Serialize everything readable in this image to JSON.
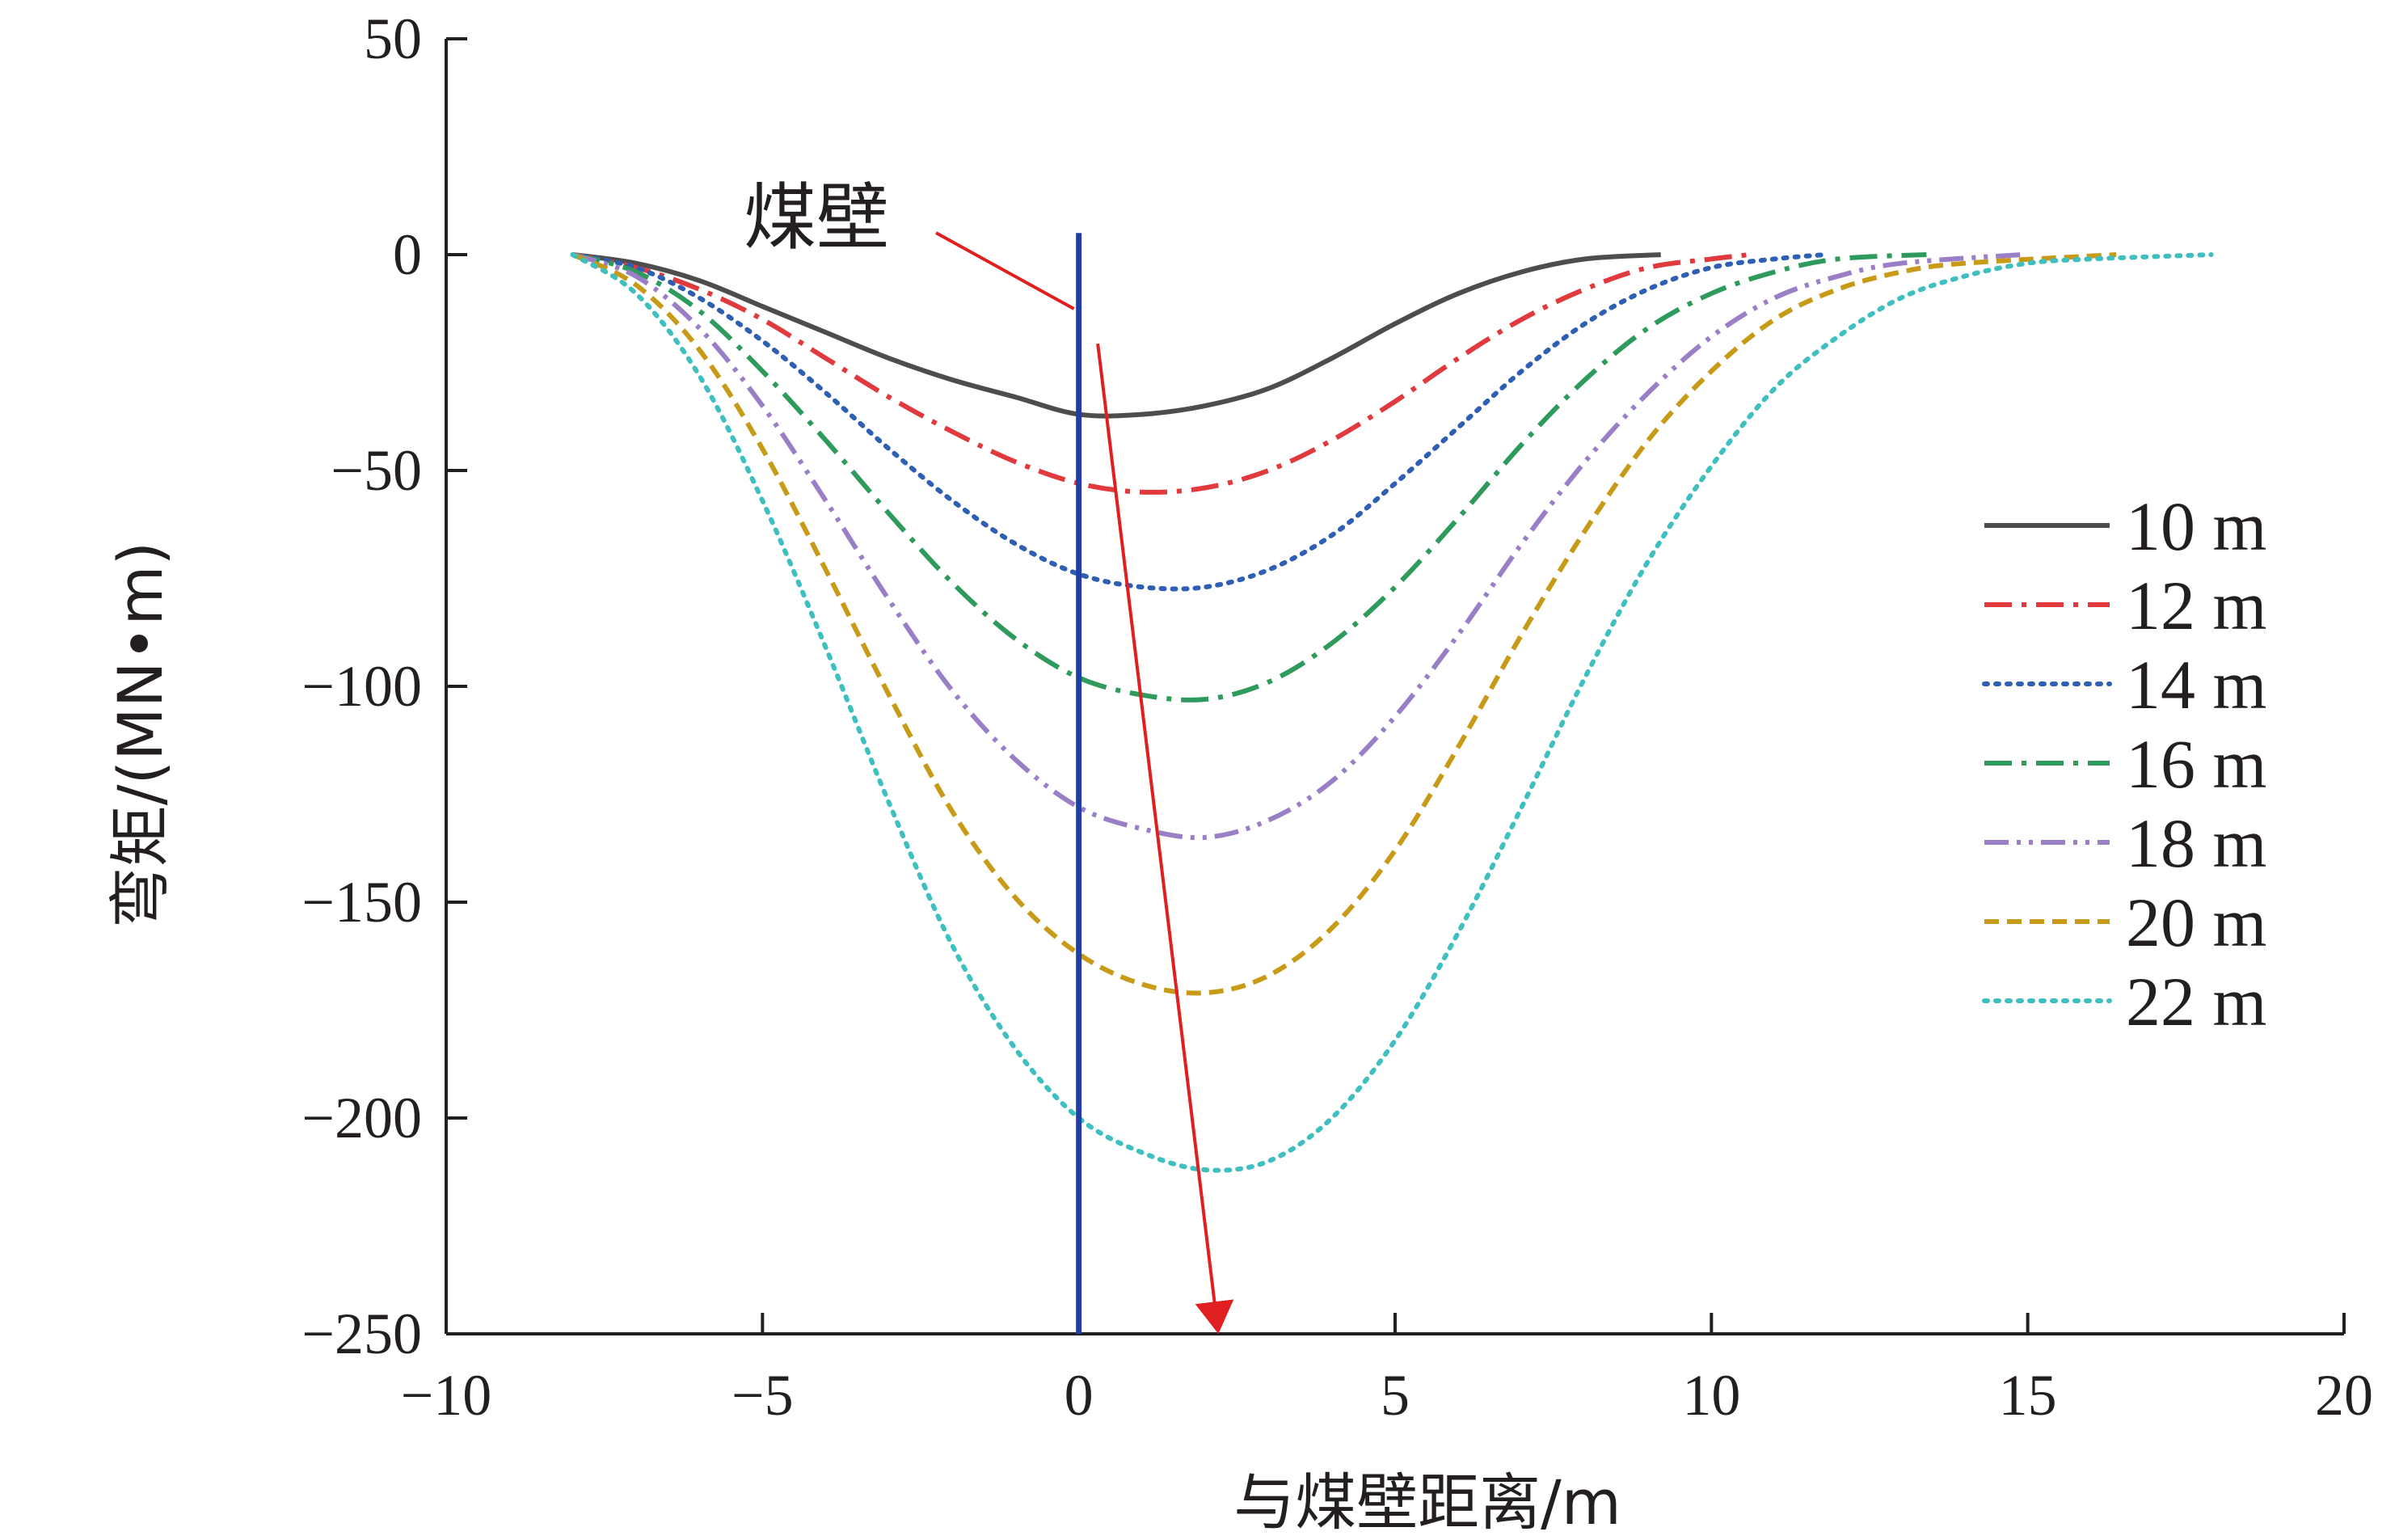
{
  "chart_data": {
    "type": "line",
    "title": "",
    "xlabel": "与煤壁距离/m",
    "ylabel": "弯矩/(MN•m)",
    "xlim": [
      -10,
      20
    ],
    "ylim": [
      -250,
      50
    ],
    "xticks": [
      -10,
      -5,
      0,
      5,
      10,
      15,
      20
    ],
    "yticks": [
      50,
      0,
      -50,
      -100,
      -150,
      -200,
      -250
    ],
    "grid": false,
    "legend": "right",
    "series": [
      {
        "name": "10 m",
        "color": "#4d4d4d",
        "dash": "solid",
        "x_start": -8,
        "x_end": 9.2,
        "min_x": 0,
        "min_y": -37,
        "points": [
          [
            -8,
            0
          ],
          [
            -7,
            -2
          ],
          [
            -6,
            -6
          ],
          [
            -5,
            -12
          ],
          [
            -4,
            -18
          ],
          [
            -3,
            -24
          ],
          [
            -2,
            -29
          ],
          [
            -1,
            -33
          ],
          [
            0,
            -37
          ],
          [
            1,
            -37
          ],
          [
            2,
            -35
          ],
          [
            3,
            -31
          ],
          [
            4,
            -24
          ],
          [
            5,
            -16
          ],
          [
            6,
            -9
          ],
          [
            7,
            -4
          ],
          [
            8,
            -1
          ],
          [
            9.2,
            0
          ]
        ]
      },
      {
        "name": "12 m",
        "color": "#e03a3e",
        "dash": "dashdot",
        "x_start": -8,
        "x_end": 10.6,
        "min_x": 0.5,
        "min_y": -55,
        "points": [
          [
            -8,
            0
          ],
          [
            -7,
            -3
          ],
          [
            -6,
            -8
          ],
          [
            -5,
            -15
          ],
          [
            -4,
            -24
          ],
          [
            -3,
            -33
          ],
          [
            -2,
            -41
          ],
          [
            -1,
            -48
          ],
          [
            0,
            -53
          ],
          [
            1,
            -55
          ],
          [
            2,
            -54
          ],
          [
            3,
            -50
          ],
          [
            4,
            -43
          ],
          [
            5,
            -34
          ],
          [
            6,
            -24
          ],
          [
            7,
            -15
          ],
          [
            8,
            -8
          ],
          [
            9,
            -3
          ],
          [
            10,
            -1
          ],
          [
            10.6,
            0
          ]
        ]
      },
      {
        "name": "14 m",
        "color": "#2f5fb3",
        "dash": "dot",
        "x_start": -8,
        "x_end": 11.8,
        "min_x": 1,
        "min_y": -77,
        "points": [
          [
            -8,
            0
          ],
          [
            -7,
            -3
          ],
          [
            -6,
            -10
          ],
          [
            -5,
            -20
          ],
          [
            -4,
            -32
          ],
          [
            -3,
            -45
          ],
          [
            -2,
            -57
          ],
          [
            -1,
            -67
          ],
          [
            0,
            -74
          ],
          [
            1,
            -77
          ],
          [
            2,
            -77
          ],
          [
            3,
            -73
          ],
          [
            4,
            -65
          ],
          [
            5,
            -53
          ],
          [
            6,
            -40
          ],
          [
            7,
            -27
          ],
          [
            8,
            -16
          ],
          [
            9,
            -8
          ],
          [
            10,
            -3
          ],
          [
            11,
            -1
          ],
          [
            11.8,
            0
          ]
        ]
      },
      {
        "name": "16 m",
        "color": "#2e9b5c",
        "dash": "dashdot",
        "x_start": -8,
        "x_end": 13.4,
        "min_x": 1.5,
        "min_y": -103,
        "points": [
          [
            -8,
            0
          ],
          [
            -7,
            -4
          ],
          [
            -6,
            -13
          ],
          [
            -5,
            -27
          ],
          [
            -4,
            -43
          ],
          [
            -3,
            -60
          ],
          [
            -2,
            -76
          ],
          [
            -1,
            -89
          ],
          [
            0,
            -98
          ],
          [
            1,
            -102
          ],
          [
            2,
            -103
          ],
          [
            3,
            -99
          ],
          [
            4,
            -90
          ],
          [
            5,
            -77
          ],
          [
            6,
            -61
          ],
          [
            7,
            -44
          ],
          [
            8,
            -29
          ],
          [
            9,
            -17
          ],
          [
            10,
            -9
          ],
          [
            11,
            -4
          ],
          [
            12,
            -1
          ],
          [
            13.4,
            0
          ]
        ]
      },
      {
        "name": "18 m",
        "color": "#9b7fc6",
        "dash": "dashdotdot",
        "x_start": -8,
        "x_end": 14.9,
        "min_x": 2,
        "min_y": -135,
        "points": [
          [
            -8,
            0
          ],
          [
            -7,
            -5
          ],
          [
            -6,
            -17
          ],
          [
            -5,
            -35
          ],
          [
            -4,
            -57
          ],
          [
            -3,
            -80
          ],
          [
            -2,
            -101
          ],
          [
            -1,
            -117
          ],
          [
            0,
            -128
          ],
          [
            1,
            -133
          ],
          [
            2,
            -135
          ],
          [
            3,
            -131
          ],
          [
            4,
            -122
          ],
          [
            5,
            -107
          ],
          [
            6,
            -88
          ],
          [
            7,
            -67
          ],
          [
            8,
            -48
          ],
          [
            9,
            -32
          ],
          [
            10,
            -19
          ],
          [
            11,
            -10
          ],
          [
            12,
            -5
          ],
          [
            13,
            -2
          ],
          [
            14.9,
            0
          ]
        ]
      },
      {
        "name": "20 m",
        "color": "#c79a18",
        "dash": "dash",
        "x_start": -8,
        "x_end": 16.4,
        "min_x": 2,
        "min_y": -171,
        "points": [
          [
            -8,
            0
          ],
          [
            -7,
            -7
          ],
          [
            -6,
            -22
          ],
          [
            -5,
            -45
          ],
          [
            -4,
            -73
          ],
          [
            -3,
            -102
          ],
          [
            -2,
            -129
          ],
          [
            -1,
            -149
          ],
          [
            0,
            -162
          ],
          [
            1,
            -169
          ],
          [
            2,
            -171
          ],
          [
            3,
            -167
          ],
          [
            4,
            -156
          ],
          [
            5,
            -138
          ],
          [
            6,
            -114
          ],
          [
            7,
            -88
          ],
          [
            8,
            -64
          ],
          [
            9,
            -43
          ],
          [
            10,
            -27
          ],
          [
            11,
            -15
          ],
          [
            12,
            -8
          ],
          [
            13,
            -4
          ],
          [
            14,
            -2
          ],
          [
            16.4,
            0
          ]
        ]
      },
      {
        "name": "22 m",
        "color": "#3fbfbf",
        "dash": "dot",
        "x_start": -8,
        "x_end": 17.9,
        "min_x": 2.5,
        "min_y": -212,
        "points": [
          [
            -8,
            0
          ],
          [
            -7,
            -9
          ],
          [
            -6,
            -28
          ],
          [
            -5,
            -57
          ],
          [
            -4,
            -91
          ],
          [
            -3,
            -127
          ],
          [
            -2,
            -160
          ],
          [
            -1,
            -184
          ],
          [
            0,
            -200
          ],
          [
            1,
            -208
          ],
          [
            2,
            -212
          ],
          [
            3,
            -210
          ],
          [
            4,
            -200
          ],
          [
            5,
            -182
          ],
          [
            6,
            -157
          ],
          [
            7,
            -128
          ],
          [
            8,
            -98
          ],
          [
            9,
            -71
          ],
          [
            10,
            -49
          ],
          [
            11,
            -31
          ],
          [
            12,
            -19
          ],
          [
            13,
            -10
          ],
          [
            14,
            -5
          ],
          [
            15,
            -2
          ],
          [
            16,
            -1
          ],
          [
            17.9,
            0
          ]
        ]
      }
    ],
    "annotations": {
      "coal_wall": {
        "label": "煤壁",
        "x": 0,
        "y_top": 5,
        "color": "#1f3fa8"
      },
      "trend_arrow": {
        "color": "#e02020",
        "from": [
          0.3,
          -15
        ],
        "to": [
          2.2,
          -250
        ]
      }
    }
  }
}
